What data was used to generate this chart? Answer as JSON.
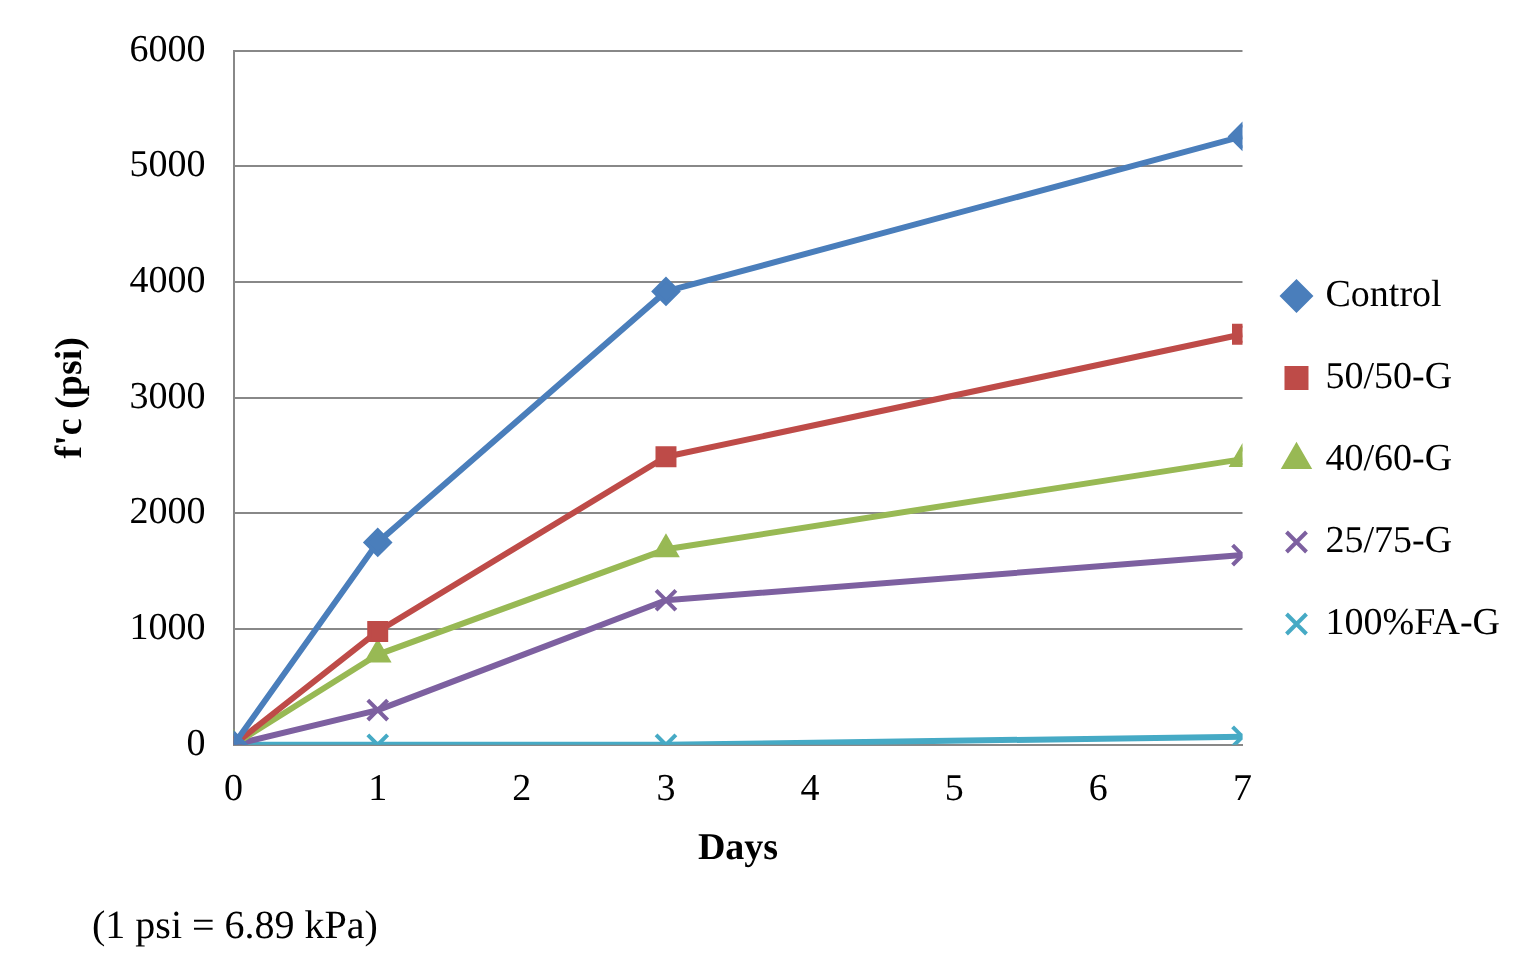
{
  "chart_data": {
    "type": "line",
    "xlabel": "Days",
    "ylabel": "f'c (psi)",
    "x": [
      0,
      1,
      3,
      7
    ],
    "xlim": [
      0,
      7
    ],
    "xticks": [
      0,
      1,
      2,
      3,
      4,
      5,
      6,
      7
    ],
    "ylim": [
      0,
      6000
    ],
    "yticks": [
      0,
      1000,
      2000,
      3000,
      4000,
      5000,
      6000
    ],
    "grid": "y",
    "legend": "right",
    "line_style": "solid",
    "series": [
      {
        "name": "Control",
        "color": "#4a7ebb",
        "marker": "diamond",
        "values": [
          0,
          1750,
          3920,
          5260
        ]
      },
      {
        "name": "50/50-G",
        "color": "#be4b48",
        "marker": "square",
        "values": [
          0,
          980,
          2490,
          3550
        ]
      },
      {
        "name": "40/60-G",
        "color": "#98b954",
        "marker": "triangle",
        "values": [
          0,
          780,
          1690,
          2470
        ]
      },
      {
        "name": "25/75-G",
        "color": "#7d60a0",
        "marker": "cross",
        "values": [
          0,
          300,
          1250,
          1640
        ]
      },
      {
        "name": "100%FA-G",
        "color": "#46aac5",
        "marker": "cross",
        "values": [
          0,
          0,
          0,
          70
        ]
      }
    ],
    "annotations": [
      "(1 psi = 6.89 kPa)"
    ]
  }
}
